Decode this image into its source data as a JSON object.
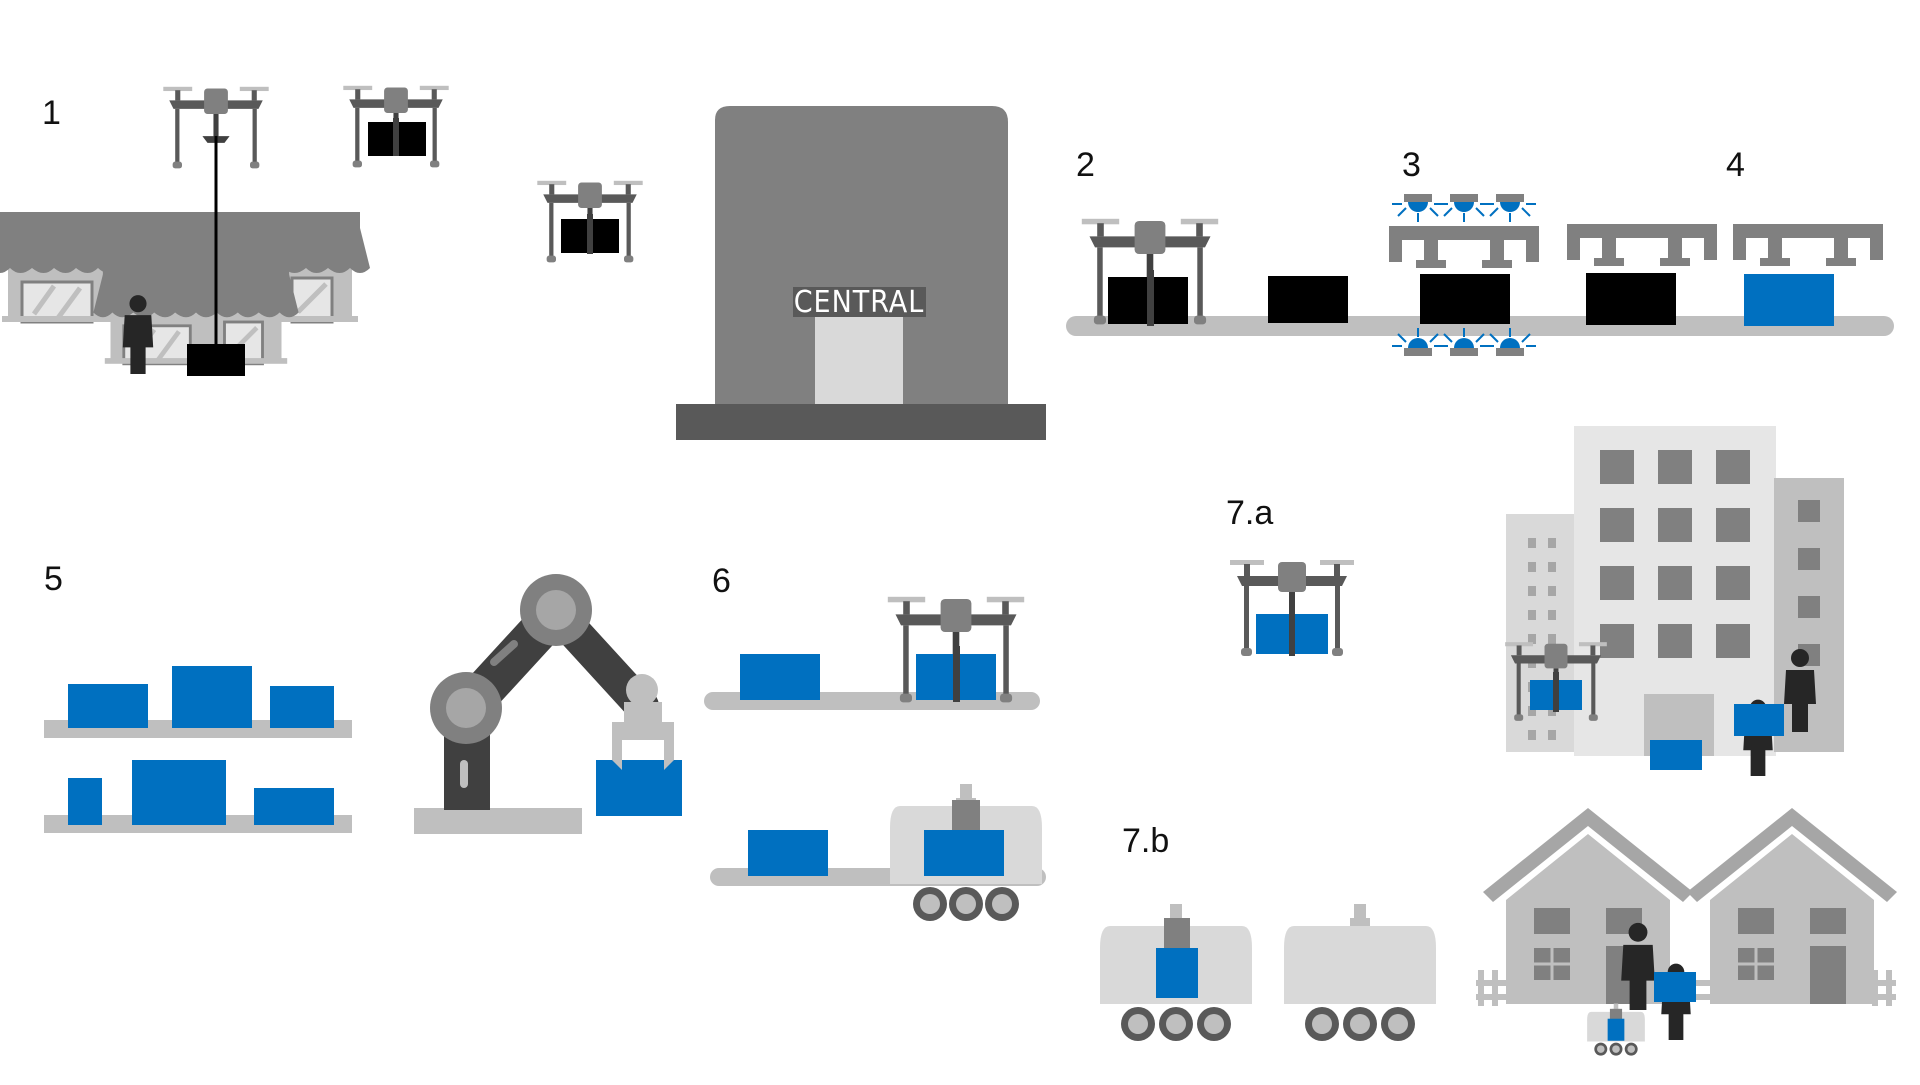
{
  "labels": {
    "step1": "1",
    "step2": "2",
    "step3": "3",
    "step4": "4",
    "step5": "5",
    "step6": "6",
    "step7a": "7.a",
    "step7b": "7.b",
    "central": "CENTRAL"
  },
  "colors": {
    "blue": "#0070c0",
    "black": "#000000",
    "dark_gray": "#595959",
    "mid_gray": "#808080",
    "light_gray": "#bfbfbf",
    "pale_gray": "#d9d9d9",
    "person": "#262626"
  },
  "icons": [
    "drone-icon",
    "shop-icon",
    "person-icon",
    "building-icon",
    "robot-arm-icon",
    "delivery-robot-icon",
    "house-icon",
    "uv-lamp-icon",
    "package-icon"
  ]
}
